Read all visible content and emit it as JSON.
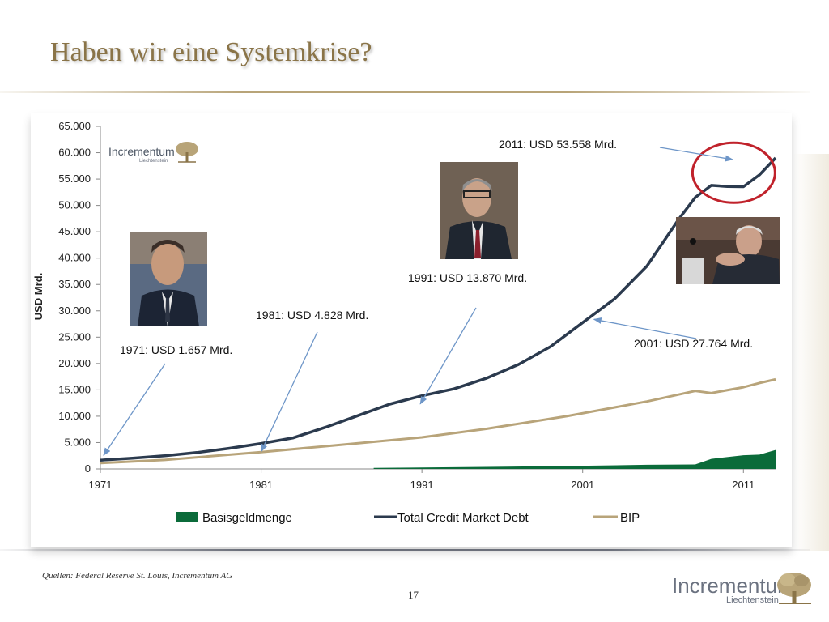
{
  "slide": {
    "title": "Haben wir eine Systemkrise?",
    "source": "Quellen: Federal Reserve St. Louis, Incrementum AG",
    "page_number": "17"
  },
  "logo": {
    "name": "Incrementum",
    "sub": "Liechtenstein",
    "icon": "tree-icon",
    "color": "#b8a478"
  },
  "colors": {
    "debt": "#2b3a4e",
    "bip": "#b8a47a",
    "base": "#0b6b3a",
    "highlight": "#c0222b",
    "arrow": "#6e96c8",
    "title": "#8a7448"
  },
  "chart_data": {
    "type": "line",
    "ylabel": "USD Mrd.",
    "xlim": [
      1971,
      2013
    ],
    "ylim": [
      0,
      65000
    ],
    "y_ticks": [
      "0",
      "5.000",
      "10.000",
      "15.000",
      "20.000",
      "25.000",
      "30.000",
      "35.000",
      "40.000",
      "45.000",
      "50.000",
      "55.000",
      "60.000",
      "65.000"
    ],
    "x_ticks": [
      "1971",
      "1981",
      "1991",
      "2001",
      "2011"
    ],
    "legend_position": "bottom",
    "series": [
      {
        "name": "Total Credit Market Debt",
        "type": "line",
        "color": "#2b3a4e",
        "points": [
          [
            1971,
            1657
          ],
          [
            1973,
            2050
          ],
          [
            1975,
            2500
          ],
          [
            1977,
            3100
          ],
          [
            1979,
            3900
          ],
          [
            1981,
            4828
          ],
          [
            1983,
            5900
          ],
          [
            1985,
            7900
          ],
          [
            1987,
            10100
          ],
          [
            1989,
            12300
          ],
          [
            1991,
            13870
          ],
          [
            1993,
            15200
          ],
          [
            1995,
            17200
          ],
          [
            1997,
            19800
          ],
          [
            1999,
            23200
          ],
          [
            2001,
            27764
          ],
          [
            2003,
            32300
          ],
          [
            2005,
            38500
          ],
          [
            2007,
            47500
          ],
          [
            2008,
            51500
          ],
          [
            2009,
            53800
          ],
          [
            2010,
            53600
          ],
          [
            2011,
            53558
          ],
          [
            2012,
            55800
          ],
          [
            2013,
            59000
          ]
        ]
      },
      {
        "name": "BIP",
        "type": "line",
        "color": "#b8a47a",
        "points": [
          [
            1971,
            1100
          ],
          [
            1975,
            1700
          ],
          [
            1981,
            3200
          ],
          [
            1985,
            4300
          ],
          [
            1991,
            6000
          ],
          [
            1995,
            7600
          ],
          [
            2000,
            10000
          ],
          [
            2005,
            12800
          ],
          [
            2008,
            14800
          ],
          [
            2009,
            14400
          ],
          [
            2011,
            15500
          ],
          [
            2012,
            16300
          ],
          [
            2013,
            17000
          ]
        ]
      },
      {
        "name": "Basisgeldmenge",
        "type": "area",
        "color": "#0b6b3a",
        "points": [
          [
            1988,
            200
          ],
          [
            1991,
            260
          ],
          [
            1995,
            380
          ],
          [
            2000,
            550
          ],
          [
            2005,
            780
          ],
          [
            2008,
            850
          ],
          [
            2009,
            1900
          ],
          [
            2011,
            2600
          ],
          [
            2012,
            2700
          ],
          [
            2013,
            3600
          ]
        ]
      }
    ],
    "annotations": [
      {
        "text": "1971: USD 1.657 Mrd.",
        "target": [
          1971,
          1657
        ]
      },
      {
        "text": "1981: USD 4.828 Mrd.",
        "target": [
          1981,
          4828
        ]
      },
      {
        "text": "1991: USD 13.870 Mrd.",
        "target": [
          1991,
          13870
        ]
      },
      {
        "text": "2001: USD 27.764 Mrd.",
        "target": [
          2001,
          27764
        ]
      },
      {
        "text": "2011: USD 53.558 Mrd.",
        "target": [
          2011,
          53558
        ]
      }
    ],
    "portraits": [
      "portrait-1971",
      "portrait-1991",
      "portrait-2011"
    ]
  }
}
